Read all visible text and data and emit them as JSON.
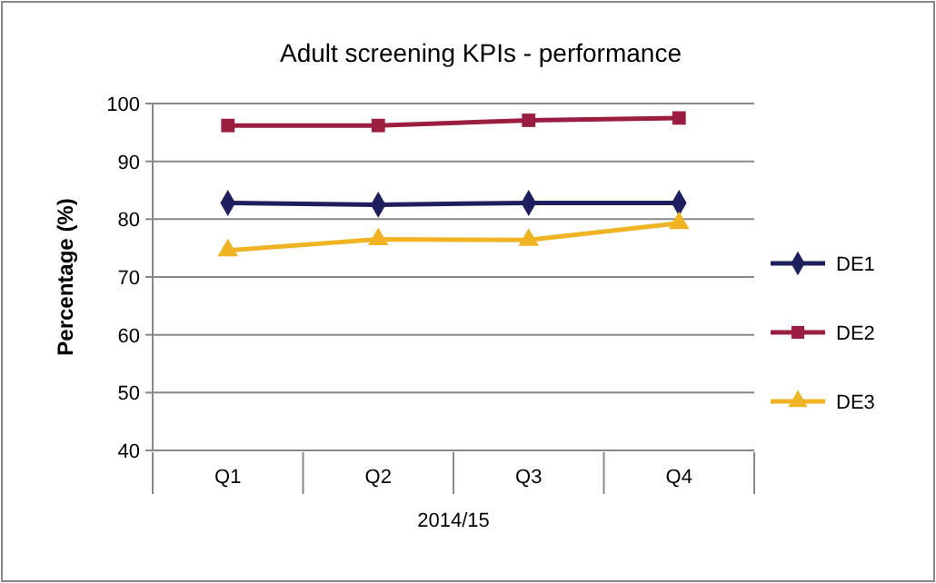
{
  "chart_data": {
    "type": "line",
    "title": "Adult screening KPIs - performance",
    "ylabel": "Percentage (%)",
    "xlabel": "2014/15",
    "categories": [
      "Q1",
      "Q2",
      "Q3",
      "Q4"
    ],
    "series": [
      {
        "name": "DE1",
        "color": "#1f1f5f",
        "marker": "diamond",
        "values": [
          82.8,
          82.5,
          82.8,
          82.8
        ]
      },
      {
        "name": "DE2",
        "color": "#9b1d3f",
        "marker": "square",
        "values": [
          96.2,
          96.2,
          97.1,
          97.5
        ]
      },
      {
        "name": "DE3",
        "color": "#f0b323",
        "marker": "triangle",
        "values": [
          74.6,
          76.5,
          76.4,
          79.3
        ]
      }
    ],
    "ylim": [
      40,
      100
    ],
    "yticks": [
      40,
      50,
      60,
      70,
      80,
      90,
      100
    ],
    "grid": "y",
    "legend": "right",
    "line_style": "solid"
  }
}
